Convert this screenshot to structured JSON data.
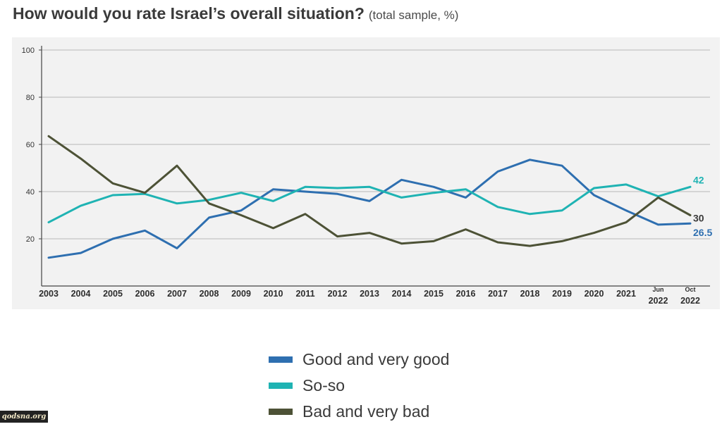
{
  "header": {
    "title": "How would you rate Israel’s overall situation?",
    "subtitle": "(total sample, %)"
  },
  "chart_data": {
    "type": "line",
    "title": "How would you rate Israel’s overall situation?",
    "subtitle": "(total sample, %)",
    "xlabel": "",
    "ylabel": "",
    "ylim": [
      0,
      100
    ],
    "yticks": [
      20,
      40,
      60,
      80,
      100
    ],
    "grid": true,
    "legend_position": "bottom",
    "categories": [
      "2003",
      "2004",
      "2005",
      "2006",
      "2007",
      "2008",
      "2009",
      "2010",
      "2011",
      "2012",
      "2013",
      "2014",
      "2015",
      "2016",
      "2017",
      "2018",
      "2019",
      "2020",
      "2021",
      "Jun 2022",
      "Oct 2022"
    ],
    "category_labels": [
      [
        "2003"
      ],
      [
        "2004"
      ],
      [
        "2005"
      ],
      [
        "2006"
      ],
      [
        "2007"
      ],
      [
        "2008"
      ],
      [
        "2009"
      ],
      [
        "2010"
      ],
      [
        "2011"
      ],
      [
        "2012"
      ],
      [
        "2013"
      ],
      [
        "2014"
      ],
      [
        "2015"
      ],
      [
        "2016"
      ],
      [
        "2017"
      ],
      [
        "2018"
      ],
      [
        "2019"
      ],
      [
        "2020"
      ],
      [
        "2021"
      ],
      [
        "Jun",
        "2022"
      ],
      [
        "Oct",
        "2022"
      ]
    ],
    "series": [
      {
        "name": "Good and very good",
        "color": "#2e6fb0",
        "values": [
          12,
          14,
          20,
          23.5,
          16,
          29,
          32,
          41,
          40,
          39,
          36,
          45,
          42,
          37.5,
          48.5,
          53.5,
          51,
          38.5,
          32,
          26,
          26.5
        ],
        "end_label": "26.5"
      },
      {
        "name": "So-so",
        "color": "#1fb3b3",
        "values": [
          27,
          34,
          38.5,
          39,
          35,
          36.5,
          39.5,
          36,
          42,
          41.5,
          42,
          37.5,
          39.5,
          41,
          33.5,
          30.5,
          32,
          41.5,
          43,
          38,
          42
        ],
        "end_label": "42"
      },
      {
        "name": "Bad and very bad",
        "color": "#4d5236",
        "values": [
          63.5,
          54,
          43.5,
          39.5,
          51,
          35,
          30,
          24.5,
          30.5,
          21,
          22.5,
          18,
          19,
          24,
          18.5,
          17,
          19,
          22.5,
          27,
          37.5,
          30
        ],
        "end_label": "30"
      }
    ]
  },
  "watermark": {
    "text": "qodsna.org"
  }
}
